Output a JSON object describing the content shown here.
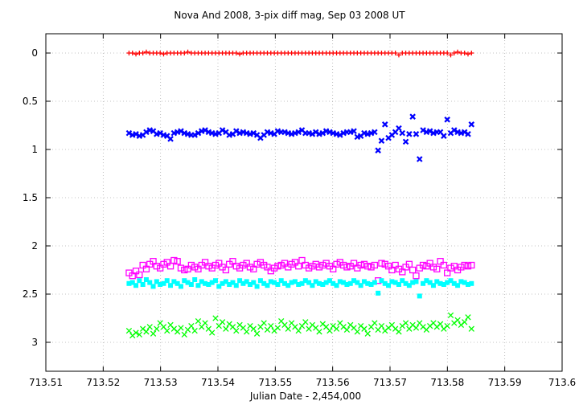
{
  "chart_data": {
    "type": "scatter",
    "title": "Nova And 2008,  3-pix diff mag, Sep 03 2008 UT",
    "xlabel": "Julian Date - 2,454,000",
    "ylabel": "",
    "xlim": [
      713.51,
      713.6
    ],
    "ylim": [
      3.3,
      -0.2
    ],
    "y_inverted": true,
    "grid": true,
    "legend": "none",
    "x_ticks": [
      "713.51",
      "713.52",
      "713.53",
      "713.54",
      "713.55",
      "713.56",
      "713.57",
      "713.58",
      "713.59",
      "713.6"
    ],
    "y_ticks": [
      "0",
      "0.5",
      "1",
      "1.5",
      "2",
      "2.5",
      "3"
    ],
    "x_range_points": [
      713.5245,
      713.5842
    ],
    "series": [
      {
        "color": "#ff0000",
        "marker": "plus",
        "values": [
          0.0,
          0.0,
          0.01,
          0.0,
          0.0,
          -0.01,
          0.0,
          0.0,
          0.0,
          0.0,
          0.01,
          0.0,
          0.0,
          0.0,
          0.0,
          0.0,
          0.0,
          -0.01,
          0.0,
          0.0,
          0.0,
          0.0,
          0.0,
          0.0,
          0.0,
          0.0,
          0.0,
          0.0,
          0.0,
          0.0,
          0.0,
          0.0,
          0.01,
          0.0,
          0.0,
          0.0,
          0.0,
          0.0,
          0.0,
          0.0,
          0.0,
          0.0,
          0.0,
          0.0,
          0.0,
          0.0,
          0.0,
          0.0,
          0.0,
          0.0,
          0.0,
          0.0,
          0.0,
          0.0,
          0.0,
          0.0,
          0.0,
          0.0,
          0.0,
          0.0,
          0.0,
          0.0,
          0.0,
          0.0,
          0.0,
          0.0,
          0.0,
          0.0,
          0.0,
          0.0,
          0.0,
          0.0,
          0.0,
          0.0,
          0.0,
          0.0,
          0.0,
          0.0,
          0.02,
          0.0,
          0.0,
          0.0,
          0.0,
          0.0,
          0.0,
          0.0,
          0.0,
          0.0,
          0.0,
          0.0,
          0.0,
          0.0,
          0.0,
          0.02,
          0.0,
          -0.01,
          0.0,
          0.0,
          0.01,
          0.0
        ]
      },
      {
        "color": "#0000ff",
        "marker": "x-bold",
        "values": [
          0.83,
          0.85,
          0.84,
          0.86,
          0.85,
          0.82,
          0.8,
          0.81,
          0.84,
          0.83,
          0.85,
          0.86,
          0.89,
          0.83,
          0.82,
          0.81,
          0.83,
          0.84,
          0.85,
          0.85,
          0.83,
          0.81,
          0.8,
          0.82,
          0.83,
          0.84,
          0.83,
          0.8,
          0.82,
          0.85,
          0.84,
          0.81,
          0.83,
          0.82,
          0.83,
          0.84,
          0.83,
          0.85,
          0.88,
          0.85,
          0.82,
          0.83,
          0.84,
          0.81,
          0.82,
          0.82,
          0.83,
          0.84,
          0.83,
          0.82,
          0.8,
          0.83,
          0.83,
          0.84,
          0.82,
          0.84,
          0.83,
          0.81,
          0.82,
          0.83,
          0.84,
          0.85,
          0.83,
          0.82,
          0.82,
          0.81,
          0.87,
          0.86,
          0.83,
          0.84,
          0.83,
          0.82,
          1.01,
          0.91,
          0.74,
          0.88,
          0.85,
          0.82,
          0.78,
          0.83,
          0.92,
          0.84,
          0.66,
          0.84,
          1.1,
          0.8,
          0.82,
          0.81,
          0.83,
          0.82,
          0.82,
          0.86,
          0.69,
          0.83,
          0.8,
          0.82,
          0.83,
          0.82,
          0.84,
          0.74
        ]
      },
      {
        "color": "#ff00ff",
        "marker": "square",
        "values": [
          2.28,
          2.31,
          2.26,
          2.3,
          2.2,
          2.24,
          2.19,
          2.16,
          2.21,
          2.23,
          2.19,
          2.17,
          2.21,
          2.15,
          2.16,
          2.23,
          2.25,
          2.24,
          2.2,
          2.22,
          2.24,
          2.2,
          2.17,
          2.21,
          2.23,
          2.2,
          2.18,
          2.22,
          2.25,
          2.19,
          2.16,
          2.21,
          2.23,
          2.2,
          2.18,
          2.22,
          2.24,
          2.19,
          2.17,
          2.2,
          2.22,
          2.26,
          2.23,
          2.21,
          2.2,
          2.18,
          2.22,
          2.19,
          2.17,
          2.21,
          2.15,
          2.2,
          2.23,
          2.21,
          2.19,
          2.22,
          2.2,
          2.18,
          2.21,
          2.24,
          2.19,
          2.17,
          2.2,
          2.22,
          2.21,
          2.18,
          2.23,
          2.2,
          2.19,
          2.21,
          2.22,
          2.2,
          2.36,
          2.18,
          2.19,
          2.21,
          2.25,
          2.2,
          2.24,
          2.27,
          2.22,
          2.19,
          2.25,
          2.31,
          2.23,
          2.2,
          2.21,
          2.18,
          2.22,
          2.24,
          2.16,
          2.2,
          2.28,
          2.23,
          2.21,
          2.25,
          2.22,
          2.2,
          2.21,
          2.2
        ]
      },
      {
        "color": "#00ffff",
        "marker": "filled-square",
        "values": [
          2.39,
          2.38,
          2.41,
          2.36,
          2.4,
          2.35,
          2.38,
          2.42,
          2.37,
          2.4,
          2.39,
          2.36,
          2.41,
          2.37,
          2.39,
          2.42,
          2.36,
          2.38,
          2.4,
          2.35,
          2.41,
          2.37,
          2.39,
          2.4,
          2.38,
          2.36,
          2.42,
          2.39,
          2.37,
          2.4,
          2.38,
          2.41,
          2.36,
          2.39,
          2.37,
          2.4,
          2.38,
          2.42,
          2.36,
          2.39,
          2.41,
          2.37,
          2.38,
          2.4,
          2.36,
          2.39,
          2.41,
          2.38,
          2.37,
          2.4,
          2.39,
          2.36,
          2.38,
          2.41,
          2.37,
          2.39,
          2.4,
          2.38,
          2.36,
          2.39,
          2.41,
          2.37,
          2.38,
          2.4,
          2.39,
          2.36,
          2.38,
          2.41,
          2.37,
          2.39,
          2.4,
          2.38,
          2.49,
          2.36,
          2.39,
          2.41,
          2.37,
          2.38,
          2.4,
          2.36,
          2.39,
          2.41,
          2.38,
          2.37,
          2.52,
          2.39,
          2.36,
          2.38,
          2.41,
          2.37,
          2.39,
          2.4,
          2.38,
          2.36,
          2.39,
          2.41,
          2.37,
          2.38,
          2.4,
          2.39
        ]
      },
      {
        "color": "#00ff00",
        "marker": "x",
        "values": [
          2.88,
          2.93,
          2.9,
          2.92,
          2.86,
          2.89,
          2.84,
          2.91,
          2.86,
          2.8,
          2.84,
          2.88,
          2.82,
          2.86,
          2.89,
          2.85,
          2.92,
          2.87,
          2.83,
          2.88,
          2.78,
          2.84,
          2.8,
          2.86,
          2.9,
          2.75,
          2.83,
          2.79,
          2.86,
          2.81,
          2.84,
          2.88,
          2.82,
          2.85,
          2.89,
          2.83,
          2.86,
          2.91,
          2.84,
          2.8,
          2.87,
          2.83,
          2.88,
          2.85,
          2.78,
          2.82,
          2.86,
          2.8,
          2.84,
          2.88,
          2.83,
          2.79,
          2.86,
          2.82,
          2.85,
          2.89,
          2.81,
          2.84,
          2.88,
          2.83,
          2.86,
          2.8,
          2.84,
          2.87,
          2.82,
          2.85,
          2.89,
          2.83,
          2.86,
          2.91,
          2.84,
          2.8,
          2.87,
          2.83,
          2.88,
          2.85,
          2.82,
          2.86,
          2.89,
          2.83,
          2.8,
          2.86,
          2.82,
          2.85,
          2.8,
          2.84,
          2.87,
          2.83,
          2.8,
          2.84,
          2.81,
          2.86,
          2.83,
          2.72,
          2.8,
          2.77,
          2.82,
          2.79,
          2.74,
          2.86
        ]
      }
    ]
  }
}
